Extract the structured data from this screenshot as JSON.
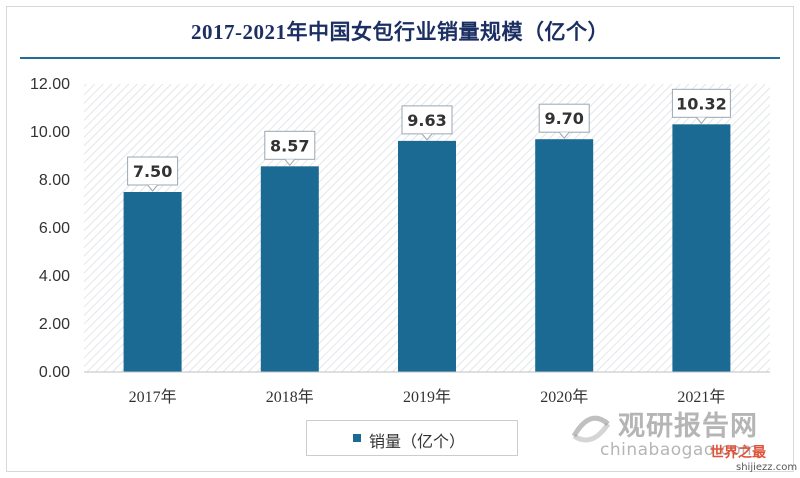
{
  "title": "2017-2021年中国女包行业销量规模（亿个）",
  "legend": {
    "label": "销量（亿个）"
  },
  "watermark": {
    "brand": "观研报告网",
    "domain": "chinabaogao.com",
    "site": "世界之最",
    "site_url": "shijiezz.com"
  },
  "colors": {
    "bar": "#1b6a94",
    "title": "#1c2f63",
    "accent_line": "#1f6f94"
  },
  "chart_data": {
    "type": "bar",
    "categories": [
      "2017年",
      "2018年",
      "2019年",
      "2020年",
      "2021年"
    ],
    "series": [
      {
        "name": "销量（亿个）",
        "values": [
          7.5,
          8.57,
          9.63,
          9.7,
          10.32
        ]
      }
    ],
    "data_labels": [
      "7.50",
      "8.57",
      "9.63",
      "9.70",
      "10.32"
    ],
    "yticks": [
      "0.00",
      "2.00",
      "4.00",
      "6.00",
      "8.00",
      "10.00",
      "12.00"
    ],
    "ylim": [
      0,
      12
    ],
    "title": "2017-2021年中国女包行业销量规模（亿个）",
    "xlabel": "",
    "ylabel": "",
    "legend_position": "bottom",
    "grid": false
  }
}
